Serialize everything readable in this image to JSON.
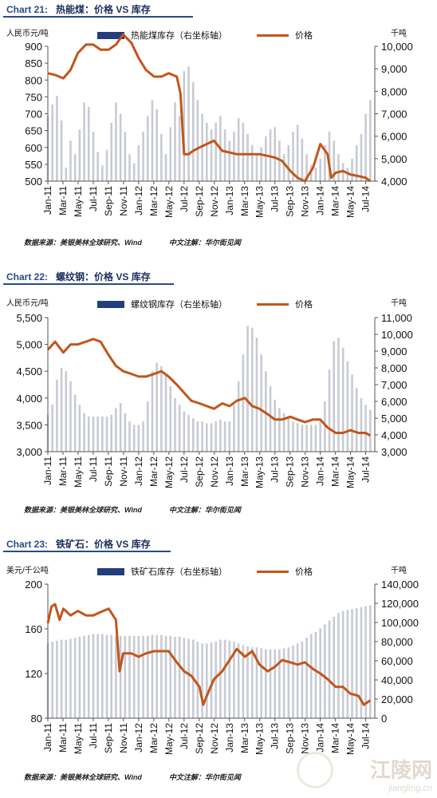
{
  "chart_data": [
    {
      "type": "bar+line",
      "chart_number": "Chart 21:",
      "title": "热能煤：价格 VS 库存",
      "ylabel_left": "人民币元/吨",
      "ylabel_right": "千吨",
      "ylim_left": [
        500,
        900
      ],
      "ylim_right": [
        4000,
        10000
      ],
      "yticks_left": [
        "500",
        "550",
        "600",
        "650",
        "700",
        "750",
        "800",
        "850",
        "900"
      ],
      "yticks_right": [
        "4,000",
        "5,000",
        "6,000",
        "7,000",
        "8,000",
        "9,000",
        "10,000"
      ],
      "xticks": [
        "Jan-11",
        "Mar-11",
        "May-11",
        "Jul-11",
        "Sep-11",
        "Nov-11",
        "Jan-12",
        "Mar-12",
        "May-12",
        "Jul-12",
        "Sep-12",
        "Nov-12",
        "Jan-13",
        "Mar-13",
        "May-13",
        "Jul-13",
        "Sep-13",
        "Nov-13",
        "Jan-14",
        "Mar-14",
        "May-14",
        "Jul-14"
      ],
      "x_range": [
        2011.0,
        2014.6
      ],
      "series": [
        {
          "name": "热能煤库存（右坐标轴）",
          "kind": "bar",
          "axis": "right",
          "color": "#c7cad3",
          "x": [
            2011.0,
            2011.05,
            2011.1,
            2011.15,
            2011.2,
            2011.25,
            2011.3,
            2011.35,
            2011.4,
            2011.45,
            2011.5,
            2011.55,
            2011.6,
            2011.65,
            2011.7,
            2011.75,
            2011.8,
            2011.85,
            2011.9,
            2011.95,
            2012.0,
            2012.05,
            2012.1,
            2012.15,
            2012.2,
            2012.25,
            2012.3,
            2012.35,
            2012.4,
            2012.45,
            2012.5,
            2012.55,
            2012.6,
            2012.65,
            2012.7,
            2012.75,
            2012.8,
            2012.85,
            2012.9,
            2012.95,
            2013.0,
            2013.05,
            2013.1,
            2013.15,
            2013.2,
            2013.25,
            2013.3,
            2013.35,
            2013.4,
            2013.45,
            2013.5,
            2013.55,
            2013.6,
            2013.65,
            2013.7,
            2013.75,
            2013.8,
            2013.85,
            2013.9,
            2013.95,
            2014.0,
            2014.05,
            2014.1,
            2014.15,
            2014.2,
            2014.25,
            2014.3,
            2014.35,
            2014.4,
            2014.45,
            2014.5,
            2014.55
          ],
          "values": [
            6900,
            7400,
            7800,
            6700,
            4600,
            5800,
            5200,
            6300,
            7500,
            7300,
            6200,
            5300,
            4700,
            5400,
            6600,
            7500,
            7000,
            6200,
            5200,
            4800,
            5600,
            6200,
            6900,
            7600,
            7200,
            6100,
            5200,
            6400,
            7500,
            6900,
            8900,
            9100,
            8400,
            7600,
            7000,
            6600,
            6300,
            6600,
            6900,
            6300,
            5800,
            6200,
            6800,
            6600,
            6100,
            5600,
            5200,
            5500,
            6000,
            6300,
            6400,
            5800,
            5200,
            5600,
            6200,
            6500,
            5900,
            5200,
            4700,
            4600,
            5000,
            5600,
            6200,
            5800,
            5200,
            4800,
            4600,
            5000,
            5600,
            6100,
            7000,
            7600
          ]
        },
        {
          "name": "价格",
          "kind": "line",
          "axis": "left",
          "color": "#c0561b",
          "x": [
            2011.0,
            2011.08,
            2011.17,
            2011.25,
            2011.33,
            2011.42,
            2011.5,
            2011.58,
            2011.67,
            2011.75,
            2011.83,
            2011.92,
            2012.0,
            2012.08,
            2012.17,
            2012.25,
            2012.33,
            2012.42,
            2012.46,
            2012.5,
            2012.55,
            2012.6,
            2012.67,
            2012.75,
            2012.83,
            2012.92,
            2013.0,
            2013.08,
            2013.17,
            2013.25,
            2013.33,
            2013.42,
            2013.5,
            2013.58,
            2013.67,
            2013.75,
            2013.83,
            2013.92,
            2014.0,
            2014.08,
            2014.12,
            2014.17,
            2014.25,
            2014.33,
            2014.42,
            2014.5,
            2014.55
          ],
          "values": [
            820,
            815,
            805,
            830,
            880,
            905,
            905,
            890,
            890,
            905,
            935,
            910,
            865,
            830,
            810,
            810,
            820,
            810,
            760,
            580,
            580,
            590,
            600,
            610,
            620,
            590,
            585,
            580,
            580,
            580,
            580,
            575,
            570,
            560,
            530,
            510,
            500,
            540,
            610,
            580,
            510,
            525,
            530,
            520,
            515,
            510,
            500
          ]
        }
      ],
      "source": "数据来源：美银美林全球研究、Wind",
      "note": "中文注解：华尔街见闻"
    },
    {
      "type": "bar+line",
      "chart_number": "Chart 22:",
      "title": "螺纹钢：价格 VS 库存",
      "ylabel_left": "人民币元/吨",
      "ylabel_right": "千吨",
      "ylim_left": [
        3000,
        5500
      ],
      "ylim_right": [
        3000,
        11000
      ],
      "yticks_left": [
        "3,000",
        "3,500",
        "4,000",
        "4,500",
        "5,000",
        "5,500"
      ],
      "yticks_right": [
        "3,000",
        "4,000",
        "5,000",
        "6,000",
        "7,000",
        "8,000",
        "9,000",
        "10,000",
        "11,000"
      ],
      "xticks": [
        "Jan-11",
        "Mar-11",
        "May-11",
        "Jul-11",
        "Sep-11",
        "Nov-11",
        "Jan-12",
        "Mar-12",
        "May-12",
        "Jul-12",
        "Sep-12",
        "Nov-12",
        "Jan-13",
        "Mar-13",
        "May-13",
        "Jul-13",
        "Sep-13",
        "Nov-13",
        "Jan-14",
        "Mar-14",
        "May-14",
        "Jul-14"
      ],
      "x_range": [
        2011.0,
        2014.6
      ],
      "series": [
        {
          "name": "螺纹钢库存（右坐标轴）",
          "kind": "bar",
          "axis": "right",
          "color": "#c7cad3",
          "x": [
            2011.0,
            2011.05,
            2011.1,
            2011.15,
            2011.2,
            2011.25,
            2011.3,
            2011.35,
            2011.4,
            2011.45,
            2011.5,
            2011.55,
            2011.6,
            2011.65,
            2011.7,
            2011.75,
            2011.8,
            2011.85,
            2011.9,
            2011.95,
            2012.0,
            2012.05,
            2012.1,
            2012.15,
            2012.2,
            2012.25,
            2012.3,
            2012.35,
            2012.4,
            2012.45,
            2012.5,
            2012.55,
            2012.6,
            2012.65,
            2012.7,
            2012.75,
            2012.8,
            2012.85,
            2012.9,
            2012.95,
            2013.0,
            2013.05,
            2013.1,
            2013.15,
            2013.2,
            2013.25,
            2013.3,
            2013.35,
            2013.4,
            2013.45,
            2013.5,
            2013.55,
            2013.6,
            2013.65,
            2013.7,
            2013.75,
            2013.8,
            2013.85,
            2013.9,
            2013.95,
            2014.0,
            2014.05,
            2014.1,
            2014.15,
            2014.2,
            2014.25,
            2014.3,
            2014.35,
            2014.4,
            2014.45,
            2014.5,
            2014.55
          ],
          "values": [
            5200,
            5800,
            7300,
            8000,
            7800,
            7200,
            6400,
            5800,
            5300,
            5100,
            5100,
            5100,
            5100,
            5100,
            5200,
            5600,
            5900,
            5300,
            4800,
            4600,
            4600,
            4800,
            6000,
            7800,
            8300,
            8100,
            7600,
            6900,
            6200,
            5800,
            5400,
            5200,
            5000,
            4800,
            4800,
            4700,
            4700,
            4800,
            4900,
            4800,
            4800,
            5800,
            7200,
            8800,
            10500,
            10400,
            9800,
            8800,
            7800,
            6900,
            6100,
            5600,
            5300,
            5000,
            4800,
            4700,
            4600,
            4600,
            4600,
            4600,
            4800,
            6000,
            7900,
            9600,
            9800,
            9200,
            8400,
            7600,
            6800,
            6200,
            5800,
            5500
          ]
        },
        {
          "name": "价格",
          "kind": "line",
          "axis": "left",
          "color": "#c0561b",
          "x": [
            2011.0,
            2011.08,
            2011.17,
            2011.25,
            2011.33,
            2011.42,
            2011.5,
            2011.58,
            2011.67,
            2011.75,
            2011.83,
            2011.92,
            2012.0,
            2012.08,
            2012.17,
            2012.25,
            2012.33,
            2012.42,
            2012.5,
            2012.58,
            2012.67,
            2012.75,
            2012.83,
            2012.92,
            2013.0,
            2013.08,
            2013.17,
            2013.25,
            2013.33,
            2013.42,
            2013.5,
            2013.58,
            2013.67,
            2013.75,
            2013.83,
            2013.92,
            2014.0,
            2014.08,
            2014.17,
            2014.25,
            2014.33,
            2014.42,
            2014.5,
            2014.55
          ],
          "values": [
            4900,
            5050,
            4850,
            5000,
            5000,
            5050,
            5100,
            5050,
            4800,
            4600,
            4500,
            4450,
            4400,
            4400,
            4450,
            4500,
            4400,
            4250,
            4100,
            3950,
            3900,
            3850,
            3800,
            3900,
            3850,
            3950,
            4000,
            3850,
            3800,
            3700,
            3600,
            3600,
            3650,
            3600,
            3550,
            3600,
            3600,
            3450,
            3350,
            3350,
            3400,
            3350,
            3350,
            3300
          ]
        }
      ],
      "source": "数据来源：美银美林全球研究、Wind",
      "note": "中文注解：华尔街见闻"
    },
    {
      "type": "bar+line",
      "chart_number": "Chart 23:",
      "title": "铁矿石：价格 VS 库存",
      "ylabel_left": "美元/千公吨",
      "ylabel_right": "千吨",
      "ylim_left": [
        80,
        200
      ],
      "ylim_right": [
        0,
        140000
      ],
      "yticks_left": [
        "80",
        "120",
        "160",
        "200"
      ],
      "yticks_right": [
        "0",
        "20,000",
        "40,000",
        "60,000",
        "80,000",
        "100,000",
        "120,000",
        "140,000"
      ],
      "xticks": [
        "Jan-11",
        "Mar-11",
        "May-11",
        "Jul-11",
        "Sep-11",
        "Nov-11",
        "Jan-12",
        "Mar-12",
        "May-12",
        "Jul-12",
        "Sep-12",
        "Nov-12",
        "Jan-13",
        "Mar-13",
        "May-13",
        "Jul-13",
        "Sep-13",
        "Nov-13",
        "Jan-14",
        "Mar-14",
        "May-14",
        "Jul-14"
      ],
      "x_range": [
        2011.0,
        2014.6
      ],
      "series": [
        {
          "name": "铁矿石库存（右坐标轴）",
          "kind": "bar",
          "axis": "right",
          "color": "#c7cad3",
          "x": [
            2011.0,
            2011.05,
            2011.1,
            2011.15,
            2011.2,
            2011.25,
            2011.3,
            2011.35,
            2011.4,
            2011.45,
            2011.5,
            2011.55,
            2011.6,
            2011.65,
            2011.7,
            2011.75,
            2011.8,
            2011.85,
            2011.9,
            2011.95,
            2012.0,
            2012.05,
            2012.1,
            2012.15,
            2012.2,
            2012.25,
            2012.3,
            2012.35,
            2012.4,
            2012.45,
            2012.5,
            2012.55,
            2012.6,
            2012.65,
            2012.7,
            2012.75,
            2012.8,
            2012.85,
            2012.9,
            2012.95,
            2013.0,
            2013.05,
            2013.1,
            2013.15,
            2013.2,
            2013.25,
            2013.3,
            2013.35,
            2013.4,
            2013.45,
            2013.5,
            2013.55,
            2013.6,
            2013.65,
            2013.7,
            2013.75,
            2013.8,
            2013.85,
            2013.9,
            2013.95,
            2014.0,
            2014.05,
            2014.1,
            2014.15,
            2014.2,
            2014.25,
            2014.3,
            2014.35,
            2014.4,
            2014.45,
            2014.5,
            2014.55
          ],
          "values": [
            78000,
            80000,
            81000,
            82000,
            82000,
            83000,
            84000,
            85000,
            86000,
            87000,
            88000,
            88000,
            88000,
            87000,
            87000,
            86000,
            86000,
            86000,
            86000,
            86000,
            86000,
            86000,
            86000,
            87000,
            87000,
            87000,
            86000,
            86000,
            85000,
            85000,
            84000,
            83000,
            82000,
            80000,
            78000,
            78000,
            79000,
            80000,
            82000,
            82000,
            81000,
            80000,
            78000,
            76000,
            75000,
            74000,
            74000,
            73000,
            72000,
            72000,
            72000,
            72000,
            73000,
            74000,
            76000,
            78000,
            80000,
            84000,
            88000,
            90000,
            94000,
            98000,
            102000,
            106000,
            110000,
            112000,
            113000,
            114000,
            115000,
            116000,
            117000,
            118000
          ]
        },
        {
          "name": "价格",
          "kind": "line",
          "axis": "left",
          "color": "#c0561b",
          "x": [
            2011.0,
            2011.04,
            2011.08,
            2011.13,
            2011.17,
            2011.25,
            2011.33,
            2011.42,
            2011.5,
            2011.58,
            2011.67,
            2011.75,
            2011.79,
            2011.83,
            2011.92,
            2012.0,
            2012.08,
            2012.17,
            2012.25,
            2012.33,
            2012.42,
            2012.5,
            2012.58,
            2012.67,
            2012.71,
            2012.75,
            2012.83,
            2012.92,
            2013.0,
            2013.08,
            2013.17,
            2013.25,
            2013.33,
            2013.42,
            2013.5,
            2013.58,
            2013.67,
            2013.75,
            2013.83,
            2013.92,
            2014.0,
            2014.08,
            2014.17,
            2014.25,
            2014.33,
            2014.42,
            2014.48,
            2014.55
          ],
          "values": [
            165,
            180,
            182,
            168,
            178,
            172,
            176,
            172,
            172,
            175,
            178,
            168,
            122,
            138,
            138,
            135,
            138,
            140,
            140,
            140,
            130,
            122,
            118,
            108,
            92,
            100,
            115,
            122,
            132,
            142,
            135,
            140,
            128,
            122,
            126,
            132,
            130,
            128,
            130,
            124,
            120,
            115,
            108,
            108,
            102,
            100,
            92,
            96
          ]
        }
      ],
      "source": "数据来源：美银美林全球研究、Wind",
      "note": "中文注解：华尔街见闻"
    }
  ],
  "watermark": {
    "text": "江陵网",
    "url": "jiangling.cn"
  }
}
